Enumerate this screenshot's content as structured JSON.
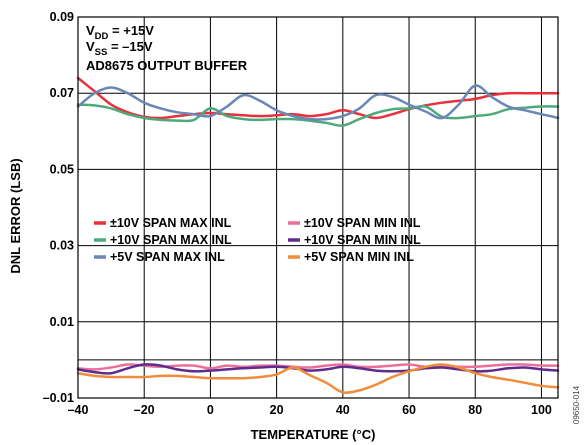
{
  "figure_code": "09650-014",
  "conditions": {
    "line1": {
      "main": "V",
      "sub": "DD",
      "rest": " = +15V"
    },
    "line2": {
      "main": "V",
      "sub": "SS",
      "rest": " = –15V"
    },
    "line3": "AD8675 OUTPUT BUFFER"
  },
  "chart_data": {
    "type": "line",
    "title": "",
    "xlabel": "TEMPERATURE (°C)",
    "ylabel": "DNL ERROR (LSB)",
    "xlim": [
      -40,
      105
    ],
    "ylim": [
      -0.01,
      0.09
    ],
    "xticks": [
      -40,
      -20,
      0,
      20,
      40,
      60,
      80,
      100
    ],
    "xtick_labels": [
      "–40",
      "–20",
      "0",
      "20",
      "40",
      "60",
      "80",
      "100"
    ],
    "yticks": [
      -0.01,
      0.01,
      0.03,
      0.05,
      0.07,
      0.09
    ],
    "ytick_labels": [
      "–0.01",
      "0.01",
      "0.03",
      "0.05",
      "0.07",
      "0.09"
    ],
    "grid": true,
    "legend_position": "middle-left",
    "series": [
      {
        "name": "±10V SPAN MAX INL",
        "color": "#e8313a",
        "x": [
          -40,
          -35,
          -30,
          -25,
          -20,
          -15,
          -10,
          -5,
          0,
          5,
          10,
          15,
          20,
          25,
          30,
          35,
          40,
          45,
          50,
          55,
          60,
          65,
          70,
          75,
          80,
          85,
          90,
          95,
          100,
          105
        ],
        "y": [
          0.074,
          0.0705,
          0.067,
          0.065,
          0.0638,
          0.0635,
          0.064,
          0.0645,
          0.0648,
          0.0645,
          0.0642,
          0.064,
          0.0642,
          0.0645,
          0.064,
          0.0645,
          0.0655,
          0.0645,
          0.0635,
          0.0645,
          0.0658,
          0.0668,
          0.0675,
          0.068,
          0.0685,
          0.0695,
          0.07,
          0.07,
          0.07,
          0.07
        ]
      },
      {
        "name": "+10V SPAN MAX INL",
        "color": "#4faa7b",
        "x": [
          -40,
          -35,
          -30,
          -25,
          -20,
          -15,
          -10,
          -5,
          0,
          5,
          10,
          15,
          20,
          25,
          30,
          35,
          40,
          45,
          50,
          55,
          60,
          65,
          70,
          75,
          80,
          85,
          90,
          95,
          100,
          105
        ],
        "y": [
          0.067,
          0.0668,
          0.066,
          0.0645,
          0.0635,
          0.063,
          0.0628,
          0.063,
          0.066,
          0.064,
          0.0632,
          0.063,
          0.0632,
          0.0632,
          0.0628,
          0.0622,
          0.0615,
          0.0632,
          0.0648,
          0.0658,
          0.066,
          0.0665,
          0.0638,
          0.0635,
          0.064,
          0.0645,
          0.0658,
          0.0662,
          0.0665,
          0.0665
        ]
      },
      {
        "name": "+5V SPAN MAX INL",
        "color": "#6b87b5",
        "x": [
          -40,
          -35,
          -30,
          -25,
          -20,
          -15,
          -10,
          -5,
          0,
          5,
          10,
          15,
          20,
          25,
          30,
          35,
          40,
          45,
          50,
          55,
          60,
          65,
          70,
          75,
          80,
          85,
          90,
          95,
          100,
          105
        ],
        "y": [
          0.0665,
          0.07,
          0.0715,
          0.07,
          0.0675,
          0.066,
          0.065,
          0.0645,
          0.064,
          0.0665,
          0.0695,
          0.068,
          0.0655,
          0.064,
          0.0632,
          0.0632,
          0.064,
          0.066,
          0.0695,
          0.069,
          0.067,
          0.0652,
          0.0635,
          0.067,
          0.072,
          0.069,
          0.0665,
          0.0655,
          0.0645,
          0.0635
        ]
      },
      {
        "name": "±10V SPAN MIN INL",
        "color": "#ec6f9b",
        "x": [
          -40,
          -35,
          -30,
          -25,
          -20,
          -15,
          -10,
          -5,
          0,
          5,
          10,
          15,
          20,
          25,
          30,
          35,
          40,
          45,
          50,
          55,
          60,
          65,
          70,
          75,
          80,
          85,
          90,
          95,
          100,
          105
        ],
        "y": [
          -0.0022,
          -0.0025,
          -0.002,
          -0.0012,
          -0.0015,
          -0.0018,
          -0.0015,
          -0.0015,
          -0.0022,
          -0.0015,
          -0.0018,
          -0.0015,
          -0.0015,
          -0.0018,
          -0.002,
          -0.0015,
          -0.0012,
          -0.0018,
          -0.0018,
          -0.0015,
          -0.0012,
          -0.0018,
          -0.0015,
          -0.0018,
          -0.0018,
          -0.0015,
          -0.0012,
          -0.0012,
          -0.0015,
          -0.0015
        ]
      },
      {
        "name": "+10V SPAN MIN INL",
        "color": "#5e2d8c",
        "x": [
          -40,
          -35,
          -30,
          -25,
          -20,
          -15,
          -10,
          -5,
          0,
          5,
          10,
          15,
          20,
          25,
          30,
          35,
          40,
          45,
          50,
          55,
          60,
          65,
          70,
          75,
          80,
          85,
          90,
          95,
          100,
          105
        ],
        "y": [
          -0.0025,
          -0.0032,
          -0.0035,
          -0.0022,
          -0.0012,
          -0.0015,
          -0.0025,
          -0.003,
          -0.0028,
          -0.0025,
          -0.0022,
          -0.002,
          -0.0018,
          -0.0022,
          -0.0028,
          -0.0025,
          -0.0018,
          -0.0022,
          -0.0028,
          -0.003,
          -0.0028,
          -0.0022,
          -0.002,
          -0.0025,
          -0.003,
          -0.0028,
          -0.0022,
          -0.002,
          -0.0025,
          -0.0028
        ]
      },
      {
        "name": "+5V SPAN MIN INL",
        "color": "#f08d3d",
        "x": [
          -40,
          -35,
          -30,
          -25,
          -20,
          -15,
          -10,
          -5,
          0,
          5,
          10,
          15,
          20,
          25,
          30,
          35,
          40,
          45,
          50,
          55,
          60,
          65,
          70,
          75,
          80,
          85,
          90,
          95,
          100,
          105
        ],
        "y": [
          -0.0035,
          -0.0042,
          -0.0045,
          -0.0045,
          -0.0045,
          -0.0042,
          -0.0042,
          -0.0045,
          -0.0048,
          -0.0048,
          -0.0048,
          -0.0045,
          -0.0038,
          -0.002,
          -0.004,
          -0.006,
          -0.0085,
          -0.008,
          -0.0065,
          -0.0045,
          -0.003,
          -0.0018,
          -0.0012,
          -0.002,
          -0.0035,
          -0.0045,
          -0.0052,
          -0.006,
          -0.0068,
          -0.0072
        ]
      }
    ]
  }
}
